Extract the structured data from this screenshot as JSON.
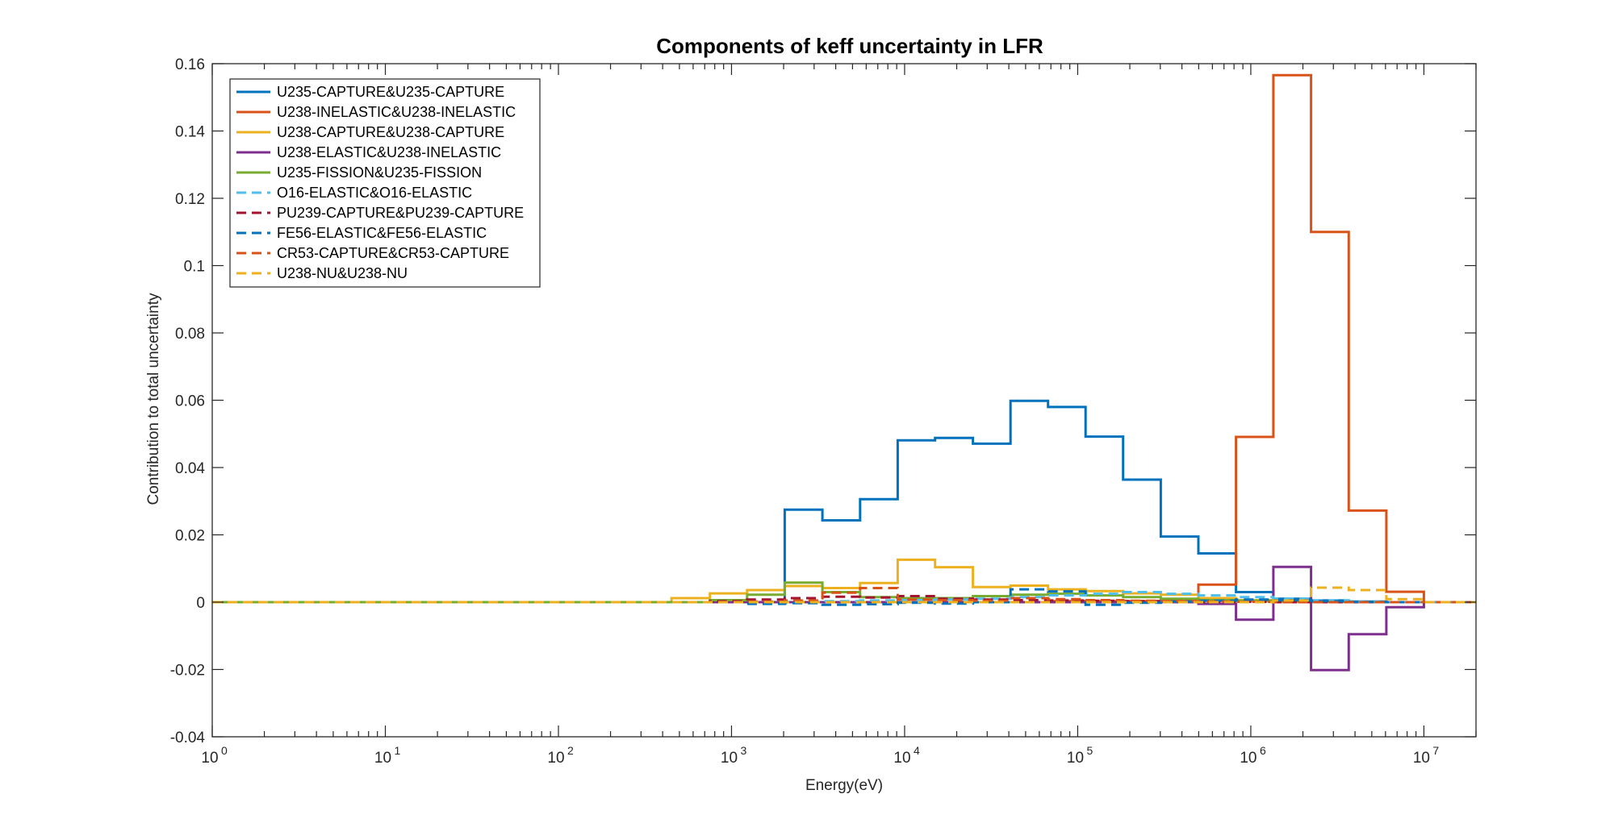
{
  "chart_data": {
    "type": "line",
    "title": "Components of keff uncertainty in LFR",
    "xlabel": "Energy(eV)",
    "ylabel": "Contribution to total uncertainty",
    "xscale": "log",
    "xlim": [
      1,
      20000000
    ],
    "ylim": [
      -0.04,
      0.16
    ],
    "xticks": [
      {
        "value": 1,
        "base": "10",
        "exp": "0"
      },
      {
        "value": 10,
        "base": "10",
        "exp": "1"
      },
      {
        "value": 100,
        "base": "10",
        "exp": "2"
      },
      {
        "value": 1000,
        "base": "10",
        "exp": "3"
      },
      {
        "value": 10000,
        "base": "10",
        "exp": "4"
      },
      {
        "value": 100000,
        "base": "10",
        "exp": "5"
      },
      {
        "value": 1000000,
        "base": "10",
        "exp": "6"
      },
      {
        "value": 10000000,
        "base": "10",
        "exp": "7"
      }
    ],
    "yticks": [
      {
        "value": -0.04,
        "label": "-0.04"
      },
      {
        "value": -0.02,
        "label": "-0.02"
      },
      {
        "value": 0,
        "label": "0"
      },
      {
        "value": 0.02,
        "label": "0.02"
      },
      {
        "value": 0.04,
        "label": "0.04"
      },
      {
        "value": 0.06,
        "label": "0.06"
      },
      {
        "value": 0.08,
        "label": "0.08"
      },
      {
        "value": 0.1,
        "label": "0.1"
      },
      {
        "value": 0.12,
        "label": "0.12"
      },
      {
        "value": 0.14,
        "label": "0.14"
      },
      {
        "value": 0.16,
        "label": "0.16"
      }
    ],
    "grid": false,
    "legend_position": "top-left",
    "series": [
      {
        "name": "U235-CAPTURE&U235-CAPTURE",
        "color": "#0072BD",
        "dash": "solid",
        "x": [
          1,
          450,
          750,
          1230,
          2030,
          3350,
          5530,
          9120,
          15000,
          24800,
          40900,
          67400,
          111000,
          183000,
          302000,
          498000,
          821000,
          1350000,
          2230000,
          3680000,
          6070000,
          10000000,
          20000000
        ],
        "y": [
          0,
          0,
          0,
          0,
          0.0275,
          0.0243,
          0.0306,
          0.0481,
          0.0488,
          0.0471,
          0.0598,
          0.058,
          0.0492,
          0.0364,
          0.0195,
          0.0145,
          0.003,
          0.001,
          0.0005,
          0.0002,
          0,
          0,
          0
        ]
      },
      {
        "name": "U238-INELASTIC&U238-INELASTIC",
        "color": "#D95319",
        "dash": "solid",
        "x": [
          1,
          450,
          750,
          1230,
          2030,
          3350,
          5530,
          9120,
          15000,
          24800,
          40900,
          67400,
          111000,
          183000,
          302000,
          498000,
          821000,
          1350000,
          2230000,
          3680000,
          6070000,
          10000000,
          20000000
        ],
        "y": [
          0,
          0,
          0,
          0,
          0,
          0,
          0,
          0,
          0,
          0,
          0,
          0.0003,
          0.0003,
          0.0003,
          0.0005,
          0.0052,
          0.0491,
          0.1566,
          0.11,
          0.0272,
          0.0031,
          0,
          0
        ]
      },
      {
        "name": "U238-CAPTURE&U238-CAPTURE",
        "color": "#EDB120",
        "dash": "solid",
        "x": [
          1,
          450,
          750,
          1230,
          2030,
          3350,
          5530,
          9120,
          15000,
          24800,
          40900,
          67400,
          111000,
          183000,
          302000,
          498000,
          821000,
          1350000,
          2230000,
          3680000,
          6070000,
          10000000,
          20000000
        ],
        "y": [
          0,
          0.0012,
          0.0026,
          0.0036,
          0.0048,
          0.0042,
          0.0057,
          0.0126,
          0.0104,
          0.0045,
          0.0049,
          0.0038,
          0.0033,
          0.0026,
          0.0022,
          0.0012,
          0.0006,
          0.0004,
          0.0002,
          0.0001,
          0,
          0,
          0
        ]
      },
      {
        "name": "U238-ELASTIC&U238-INELASTIC",
        "color": "#7E2F8E",
        "dash": "solid",
        "x": [
          1,
          450,
          750,
          1230,
          2030,
          3350,
          5530,
          9120,
          15000,
          24800,
          40900,
          67400,
          111000,
          183000,
          302000,
          498000,
          821000,
          1350000,
          2230000,
          3680000,
          6070000,
          10000000,
          20000000
        ],
        "y": [
          0,
          0,
          0,
          0,
          0,
          0,
          0,
          0,
          0,
          0,
          0,
          0,
          0,
          0,
          0,
          -0.0005,
          -0.0052,
          0.0105,
          -0.0202,
          -0.0095,
          -0.0015,
          0,
          0
        ]
      },
      {
        "name": "U235-FISSION&U235-FISSION",
        "color": "#77AC30",
        "dash": "solid",
        "x": [
          1,
          450,
          750,
          1230,
          2030,
          3350,
          5530,
          9120,
          15000,
          24800,
          40900,
          67400,
          111000,
          183000,
          302000,
          498000,
          821000,
          1350000,
          2230000,
          3680000,
          6070000,
          10000000,
          20000000
        ],
        "y": [
          0,
          0,
          0.0006,
          0.0022,
          0.0058,
          0.003,
          0.0015,
          0.0012,
          0.0012,
          0.0018,
          0.0022,
          0.0025,
          0.002,
          0.0015,
          0.001,
          0.0006,
          0.0004,
          0.0002,
          0.0001,
          0,
          0,
          0,
          0
        ]
      },
      {
        "name": "O16-ELASTIC&O16-ELASTIC",
        "color": "#4DBEEE",
        "dash": "dash",
        "x": [
          1,
          450,
          750,
          1230,
          2030,
          3350,
          5530,
          9120,
          15000,
          24800,
          40900,
          67400,
          111000,
          183000,
          302000,
          498000,
          821000,
          1350000,
          2230000,
          3680000,
          6070000,
          10000000,
          20000000
        ],
        "y": [
          0,
          0,
          0,
          0,
          0.0002,
          0.0003,
          0.0005,
          0.0006,
          0.0008,
          0.001,
          0.0015,
          0.002,
          0.0025,
          0.003,
          0.0025,
          0.002,
          0.0015,
          0.001,
          0.0005,
          0.0002,
          0,
          0,
          0
        ]
      },
      {
        "name": "PU239-CAPTURE&PU239-CAPTURE",
        "color": "#A2142F",
        "dash": "dash",
        "x": [
          1,
          450,
          750,
          1230,
          2030,
          3350,
          5530,
          9120,
          15000,
          24800,
          40900,
          67400,
          111000,
          183000,
          302000,
          498000,
          821000,
          1350000,
          2230000,
          3680000,
          6070000,
          10000000,
          20000000
        ],
        "y": [
          0,
          0,
          0.0003,
          0.0008,
          0.0012,
          0.0016,
          0.0014,
          0.0018,
          0.001,
          0.0008,
          0.0006,
          0.0005,
          0.0004,
          0.0003,
          0.0002,
          0.0001,
          0.0001,
          0,
          0,
          0,
          0,
          0,
          0
        ]
      },
      {
        "name": "FE56-ELASTIC&FE56-ELASTIC",
        "color": "#0072BD",
        "dash": "dash",
        "x": [
          1,
          450,
          750,
          1230,
          2030,
          3350,
          5530,
          9120,
          15000,
          24800,
          40900,
          67400,
          111000,
          183000,
          302000,
          498000,
          821000,
          1350000,
          2230000,
          3680000,
          6070000,
          10000000,
          20000000
        ],
        "y": [
          0,
          0,
          0,
          -0.0005,
          -0.0003,
          -0.0008,
          -0.0006,
          -0.0002,
          -0.0004,
          0,
          0.0038,
          0.0032,
          -0.0008,
          -0.0002,
          0.0002,
          0.0004,
          0.0008,
          0.0006,
          0.0003,
          0.0001,
          0,
          0,
          0
        ]
      },
      {
        "name": "CR53-CAPTURE&CR53-CAPTURE",
        "color": "#D95319",
        "dash": "dash",
        "x": [
          1,
          450,
          750,
          1230,
          2030,
          3350,
          5530,
          9120,
          15000,
          24800,
          40900,
          67400,
          111000,
          183000,
          302000,
          498000,
          821000,
          1350000,
          2230000,
          3680000,
          6070000,
          10000000,
          20000000
        ],
        "y": [
          0,
          0,
          0,
          0.0002,
          0.0005,
          0.0028,
          0.0042,
          0.0008,
          0.0006,
          0.0004,
          0.0012,
          0.0009,
          0.0006,
          0.0004,
          0.0003,
          0.0002,
          0.0001,
          0,
          0,
          0,
          0,
          0,
          0
        ]
      },
      {
        "name": "U238-NU&U238-NU",
        "color": "#EDB120",
        "dash": "dash",
        "x": [
          1,
          450,
          750,
          1230,
          2030,
          3350,
          5530,
          9120,
          15000,
          24800,
          40900,
          67400,
          111000,
          183000,
          302000,
          498000,
          821000,
          1350000,
          2230000,
          3680000,
          6070000,
          10000000,
          20000000
        ],
        "y": [
          0,
          0,
          0,
          0,
          0,
          0,
          0,
          0,
          0,
          0,
          0,
          0,
          0,
          0,
          0,
          0,
          0,
          0.0005,
          0.0043,
          0.0036,
          0.0009,
          0,
          0
        ]
      }
    ]
  }
}
